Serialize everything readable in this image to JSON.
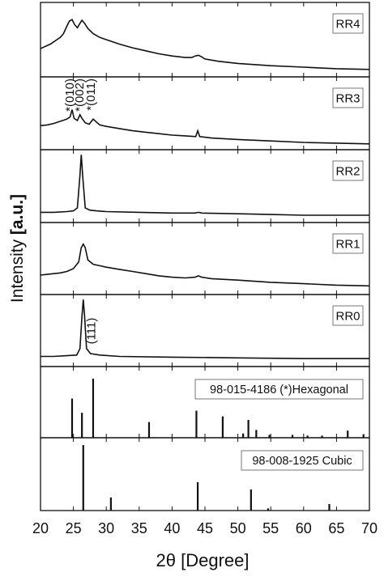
{
  "figure": {
    "ylabel_main": "Intensity ",
    "ylabel_unit": "[a.u.]",
    "xlabel": "2θ [Degree]"
  },
  "chart_data": {
    "type": "line",
    "xlim": [
      20,
      70
    ],
    "xticks": [
      20,
      25,
      30,
      35,
      40,
      45,
      50,
      55,
      60,
      65,
      70
    ],
    "panels": [
      {
        "label": "RR4",
        "kind": "line",
        "points": [
          [
            20,
            0.62
          ],
          [
            20.5,
            0.6
          ],
          [
            21,
            0.58
          ],
          [
            21.5,
            0.56
          ],
          [
            22,
            0.53
          ],
          [
            22.5,
            0.5
          ],
          [
            23,
            0.47
          ],
          [
            23.5,
            0.42
          ],
          [
            24,
            0.32
          ],
          [
            24.4,
            0.25
          ],
          [
            24.8,
            0.23
          ],
          [
            25.2,
            0.3
          ],
          [
            25.6,
            0.34
          ],
          [
            26.0,
            0.28
          ],
          [
            26.3,
            0.24
          ],
          [
            26.7,
            0.28
          ],
          [
            27.2,
            0.35
          ],
          [
            28,
            0.42
          ],
          [
            29,
            0.47
          ],
          [
            30,
            0.5
          ],
          [
            32,
            0.56
          ],
          [
            34,
            0.61
          ],
          [
            36,
            0.65
          ],
          [
            38,
            0.69
          ],
          [
            40,
            0.72
          ],
          [
            42,
            0.74
          ],
          [
            43,
            0.74
          ],
          [
            43.5,
            0.72
          ],
          [
            44,
            0.71
          ],
          [
            44.5,
            0.73
          ],
          [
            45,
            0.76
          ],
          [
            47,
            0.79
          ],
          [
            50,
            0.82
          ],
          [
            55,
            0.85
          ],
          [
            60,
            0.87
          ],
          [
            65,
            0.89
          ],
          [
            70,
            0.9
          ]
        ]
      },
      {
        "label": "RR3",
        "kind": "line",
        "points": [
          [
            20,
            0.67
          ],
          [
            21,
            0.66
          ],
          [
            22,
            0.64
          ],
          [
            23,
            0.61
          ],
          [
            24,
            0.58
          ],
          [
            24.5,
            0.55
          ],
          [
            24.8,
            0.45
          ],
          [
            25.1,
            0.57
          ],
          [
            25.6,
            0.6
          ],
          [
            26.0,
            0.52
          ],
          [
            26.3,
            0.57
          ],
          [
            26.8,
            0.63
          ],
          [
            27.4,
            0.65
          ],
          [
            28.0,
            0.58
          ],
          [
            28.5,
            0.62
          ],
          [
            29,
            0.66
          ],
          [
            30,
            0.68
          ],
          [
            32,
            0.71
          ],
          [
            34,
            0.74
          ],
          [
            36,
            0.76
          ],
          [
            38,
            0.78
          ],
          [
            40,
            0.8
          ],
          [
            42,
            0.81
          ],
          [
            43.6,
            0.82
          ],
          [
            43.9,
            0.74
          ],
          [
            44.2,
            0.82
          ],
          [
            46,
            0.84
          ],
          [
            50,
            0.86
          ],
          [
            55,
            0.88
          ],
          [
            60,
            0.9
          ],
          [
            65,
            0.91
          ],
          [
            70,
            0.92
          ]
        ]
      },
      {
        "label": "RR2",
        "kind": "line",
        "points": [
          [
            20,
            0.86
          ],
          [
            22,
            0.86
          ],
          [
            24,
            0.85
          ],
          [
            25,
            0.84
          ],
          [
            25.6,
            0.8
          ],
          [
            26.0,
            0.35
          ],
          [
            26.2,
            0.07
          ],
          [
            26.4,
            0.35
          ],
          [
            26.8,
            0.8
          ],
          [
            27.5,
            0.83
          ],
          [
            28.5,
            0.84
          ],
          [
            30,
            0.85
          ],
          [
            35,
            0.86
          ],
          [
            40,
            0.87
          ],
          [
            43.5,
            0.87
          ],
          [
            44,
            0.86
          ],
          [
            44.5,
            0.87
          ],
          [
            50,
            0.88
          ],
          [
            55,
            0.89
          ],
          [
            60,
            0.9
          ],
          [
            65,
            0.9
          ],
          [
            70,
            0.9
          ]
        ]
      },
      {
        "label": "RR1",
        "kind": "line",
        "points": [
          [
            20,
            0.73
          ],
          [
            21,
            0.72
          ],
          [
            22,
            0.71
          ],
          [
            23,
            0.7
          ],
          [
            24,
            0.68
          ],
          [
            25,
            0.64
          ],
          [
            25.8,
            0.55
          ],
          [
            26.2,
            0.35
          ],
          [
            26.5,
            0.3
          ],
          [
            26.8,
            0.35
          ],
          [
            27.2,
            0.52
          ],
          [
            28,
            0.58
          ],
          [
            29,
            0.6
          ],
          [
            30,
            0.62
          ],
          [
            32,
            0.65
          ],
          [
            34,
            0.68
          ],
          [
            36,
            0.71
          ],
          [
            38,
            0.74
          ],
          [
            40,
            0.76
          ],
          [
            42,
            0.77
          ],
          [
            43.5,
            0.76
          ],
          [
            44,
            0.74
          ],
          [
            44.5,
            0.76
          ],
          [
            46,
            0.78
          ],
          [
            50,
            0.8
          ],
          [
            55,
            0.83
          ],
          [
            60,
            0.85
          ],
          [
            65,
            0.87
          ],
          [
            70,
            0.88
          ]
        ]
      },
      {
        "label": "RR0",
        "kind": "line",
        "annotation": "(111)",
        "points": [
          [
            20,
            0.86
          ],
          [
            22,
            0.86
          ],
          [
            24,
            0.85
          ],
          [
            25.5,
            0.84
          ],
          [
            26.0,
            0.75
          ],
          [
            26.3,
            0.3
          ],
          [
            26.5,
            0.07
          ],
          [
            26.7,
            0.3
          ],
          [
            27.0,
            0.75
          ],
          [
            27.6,
            0.82
          ],
          [
            29,
            0.84
          ],
          [
            32,
            0.86
          ],
          [
            40,
            0.87
          ],
          [
            50,
            0.88
          ],
          [
            60,
            0.89
          ],
          [
            70,
            0.89
          ]
        ]
      },
      {
        "label": "98-015-4186 (*)Hexagonal",
        "kind": "stick",
        "sticks": [
          [
            24.8,
            0.55
          ],
          [
            26.3,
            0.35
          ],
          [
            28.0,
            0.83
          ],
          [
            36.5,
            0.22
          ],
          [
            43.7,
            0.38
          ],
          [
            47.7,
            0.3
          ],
          [
            51.6,
            0.25
          ],
          [
            52.8,
            0.11
          ],
          [
            50.8,
            0.06
          ],
          [
            54.8,
            0.04
          ],
          [
            58.3,
            0.04
          ],
          [
            60.6,
            0.03
          ],
          [
            62.8,
            0.03
          ],
          [
            66.7,
            0.1
          ],
          [
            69.1,
            0.05
          ]
        ]
      },
      {
        "label": "98-008-1925 Cubic",
        "kind": "stick",
        "sticks": [
          [
            26.5,
            0.9
          ],
          [
            30.7,
            0.18
          ],
          [
            43.9,
            0.39
          ],
          [
            52.0,
            0.29
          ],
          [
            54.6,
            0.03
          ],
          [
            63.9,
            0.09
          ]
        ]
      }
    ],
    "annotations": [
      {
        "text": "*(010)",
        "x": 24.8,
        "panel": 1
      },
      {
        "text": "*(002)",
        "x": 26.3,
        "panel": 1
      },
      {
        "text": "*(011)",
        "x": 28.0,
        "panel": 1
      }
    ]
  }
}
